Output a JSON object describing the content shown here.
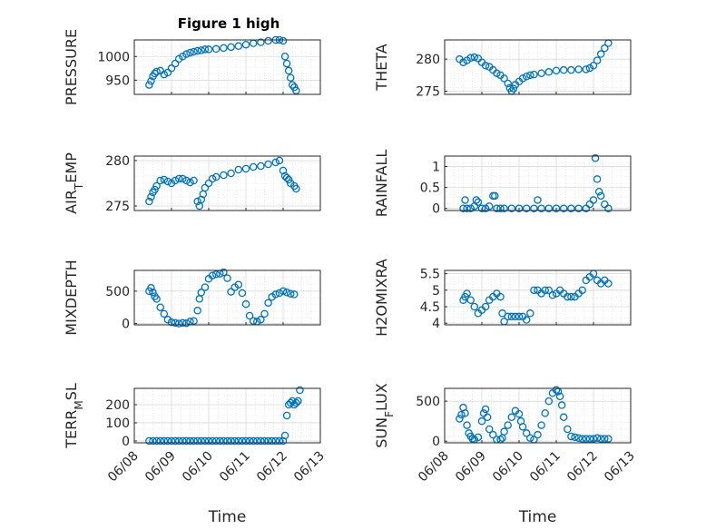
{
  "figure": {
    "title": "Figure 1 high"
  },
  "style": {
    "marker_color": "#0072BD",
    "axis_color": "#262626",
    "grid_color": "#d9d9d9",
    "background": "#ffffff"
  },
  "chart_data": [
    {
      "type": "scatter",
      "ylabel": "PRESSURE",
      "yticks": [
        "950",
        "1000"
      ],
      "ylim": [
        920,
        1035
      ],
      "x": [
        0.4,
        0.45,
        0.5,
        0.55,
        0.6,
        0.7,
        0.8,
        0.9,
        1.0,
        1.1,
        1.2,
        1.3,
        1.4,
        1.5,
        1.6,
        1.7,
        1.8,
        1.9,
        2.0,
        2.2,
        2.4,
        2.6,
        2.8,
        3.0,
        3.2,
        3.4,
        3.6,
        3.8,
        3.9,
        4.0,
        4.05,
        4.1,
        4.15,
        4.2,
        4.25,
        4.3,
        4.35
      ],
      "y": [
        940,
        948,
        958,
        964,
        968,
        970,
        962,
        966,
        975,
        985,
        995,
        1000,
        1005,
        1008,
        1010,
        1012,
        1013,
        1015,
        1015,
        1016,
        1018,
        1020,
        1022,
        1025,
        1028,
        1030,
        1033,
        1035,
        1035,
        1033,
        1000,
        985,
        970,
        955,
        940,
        935,
        928
      ]
    },
    {
      "type": "scatter",
      "ylabel": "THETA",
      "yticks": [
        "275",
        "280"
      ],
      "ylim": [
        274.5,
        283
      ],
      "x": [
        0.4,
        0.5,
        0.6,
        0.7,
        0.8,
        0.9,
        1.0,
        1.1,
        1.2,
        1.3,
        1.4,
        1.5,
        1.6,
        1.7,
        1.75,
        1.8,
        1.85,
        1.9,
        2.0,
        2.1,
        2.2,
        2.3,
        2.4,
        2.6,
        2.8,
        3.0,
        3.2,
        3.4,
        3.6,
        3.8,
        3.9,
        4.0,
        4.1,
        4.2,
        4.3,
        4.4
      ],
      "y": [
        280,
        279.5,
        279.8,
        280.2,
        280.3,
        280.1,
        279.5,
        279,
        278.8,
        278.3,
        277.8,
        277.5,
        277,
        276.2,
        275.5,
        275,
        275.4,
        276,
        276.5,
        277,
        277.3,
        277.5,
        277.6,
        277.8,
        278,
        278.2,
        278.3,
        278.3,
        278.4,
        278.4,
        278.6,
        279,
        279.8,
        280.8,
        281.7,
        282.5
      ]
    },
    {
      "type": "scatter",
      "ylabel": "AIR_TEMP",
      "yticks": [
        "275",
        "280"
      ],
      "ylim": [
        274.5,
        280.5
      ],
      "x": [
        0.4,
        0.45,
        0.5,
        0.55,
        0.6,
        0.7,
        0.8,
        0.9,
        1.0,
        1.1,
        1.2,
        1.3,
        1.4,
        1.5,
        1.6,
        1.7,
        1.75,
        1.8,
        1.85,
        1.9,
        2.0,
        2.1,
        2.2,
        2.4,
        2.6,
        2.8,
        3.0,
        3.2,
        3.4,
        3.6,
        3.8,
        3.9,
        4.0,
        4.05,
        4.1,
        4.15,
        4.2,
        4.3,
        4.35
      ],
      "y": [
        275.5,
        276,
        276.5,
        276.8,
        277.2,
        277.8,
        277.9,
        277.7,
        277.5,
        277.8,
        278,
        278,
        277.8,
        277.6,
        277.8,
        275.5,
        275,
        275.7,
        276.3,
        277,
        277.5,
        278,
        278.2,
        278.4,
        278.6,
        279,
        279.1,
        279.3,
        279.4,
        279.6,
        279.8,
        280,
        278.9,
        278.3,
        278.1,
        277.9,
        277.5,
        277.2,
        276.9
      ]
    },
    {
      "type": "scatter",
      "ylabel": "RAINFALL",
      "yticks": [
        "0",
        "0.5",
        "1"
      ],
      "ylim": [
        -0.05,
        1.25
      ],
      "x": [
        0.5,
        0.55,
        0.6,
        0.7,
        0.8,
        0.85,
        0.9,
        1.0,
        1.1,
        1.2,
        1.3,
        1.35,
        1.4,
        1.5,
        1.6,
        1.8,
        2.0,
        2.2,
        2.4,
        2.5,
        2.6,
        2.8,
        3.0,
        3.2,
        3.4,
        3.6,
        3.8,
        3.9,
        4.0,
        4.05,
        4.1,
        4.15,
        4.2,
        4.3,
        4.4
      ],
      "y": [
        0,
        0.2,
        0,
        0,
        0.05,
        0.2,
        0.15,
        0,
        0,
        0.05,
        0.3,
        0.3,
        0,
        0,
        0,
        0,
        0,
        0,
        0,
        0.2,
        0,
        0,
        0,
        0,
        0,
        0,
        0,
        0.1,
        0.2,
        1.2,
        0.7,
        0.4,
        0.3,
        0.1,
        0
      ]
    },
    {
      "type": "scatter",
      "ylabel": "MIXDEPTH",
      "yticks": [
        "0",
        "500"
      ],
      "ylim": [
        -20,
        820
      ],
      "x": [
        0.4,
        0.45,
        0.5,
        0.55,
        0.6,
        0.7,
        0.8,
        0.9,
        1.0,
        1.1,
        1.2,
        1.3,
        1.4,
        1.5,
        1.6,
        1.7,
        1.75,
        1.8,
        1.9,
        2.0,
        2.1,
        2.2,
        2.3,
        2.4,
        2.5,
        2.6,
        2.7,
        2.8,
        2.9,
        3.0,
        3.1,
        3.2,
        3.3,
        3.4,
        3.5,
        3.6,
        3.7,
        3.8,
        3.9,
        4.0,
        4.1,
        4.2,
        4.3
      ],
      "y": [
        500,
        550,
        480,
        420,
        380,
        250,
        150,
        60,
        20,
        10,
        0,
        10,
        5,
        30,
        40,
        200,
        380,
        480,
        560,
        690,
        740,
        760,
        770,
        790,
        700,
        490,
        560,
        600,
        470,
        300,
        120,
        40,
        30,
        60,
        150,
        320,
        410,
        450,
        470,
        500,
        480,
        460,
        450
      ]
    },
    {
      "type": "scatter",
      "ylabel": "H2OMIXRA",
      "yticks": [
        "4",
        "4.5",
        "5",
        "5.5"
      ],
      "ylim": [
        3.95,
        5.6
      ],
      "x": [
        0.5,
        0.55,
        0.6,
        0.7,
        0.8,
        0.9,
        1.0,
        1.1,
        1.2,
        1.3,
        1.4,
        1.5,
        1.55,
        1.6,
        1.7,
        1.8,
        1.9,
        2.0,
        2.1,
        2.2,
        2.3,
        2.4,
        2.5,
        2.6,
        2.7,
        2.8,
        2.9,
        3.0,
        3.1,
        3.2,
        3.3,
        3.4,
        3.5,
        3.6,
        3.7,
        3.8,
        3.9,
        4.0,
        4.1,
        4.2,
        4.3,
        4.4
      ],
      "y": [
        4.7,
        4.8,
        4.9,
        4.7,
        4.5,
        4.3,
        4.4,
        4.5,
        4.7,
        4.8,
        4.9,
        4.8,
        4.3,
        4.05,
        4.2,
        4.2,
        4.2,
        4.2,
        4.2,
        4.1,
        4.3,
        5.0,
        5.0,
        4.9,
        5.0,
        5.0,
        4.85,
        4.9,
        5.0,
        4.9,
        4.8,
        4.8,
        4.8,
        4.9,
        5.0,
        5.3,
        5.4,
        5.5,
        5.3,
        5.2,
        5.3,
        5.2
      ]
    },
    {
      "type": "scatter",
      "ylabel": "TERR_MSL",
      "yticks": [
        "0",
        "100",
        "200"
      ],
      "ylim": [
        -10,
        290
      ],
      "x": [
        0.4,
        0.5,
        0.6,
        0.7,
        0.8,
        0.9,
        1.0,
        1.1,
        1.2,
        1.3,
        1.4,
        1.5,
        1.6,
        1.7,
        1.8,
        1.9,
        2.0,
        2.1,
        2.2,
        2.3,
        2.4,
        2.5,
        2.6,
        2.7,
        2.8,
        2.9,
        3.0,
        3.1,
        3.2,
        3.3,
        3.4,
        3.5,
        3.6,
        3.7,
        3.8,
        3.9,
        4.0,
        4.05,
        4.1,
        4.15,
        4.2,
        4.25,
        4.3,
        4.35,
        4.4,
        4.45
      ],
      "y": [
        0,
        0,
        0,
        0,
        0,
        0,
        0,
        0,
        0,
        0,
        0,
        0,
        0,
        0,
        0,
        0,
        0,
        0,
        0,
        0,
        0,
        0,
        0,
        0,
        0,
        0,
        0,
        0,
        0,
        0,
        0,
        0,
        0,
        0,
        0,
        0,
        0,
        30,
        140,
        200,
        210,
        220,
        200,
        210,
        220,
        280
      ]
    },
    {
      "type": "scatter",
      "ylabel": "SUN_FLUX",
      "yticks": [
        "0",
        "500"
      ],
      "ylim": [
        -20,
        660
      ],
      "x": [
        0.4,
        0.45,
        0.5,
        0.55,
        0.6,
        0.65,
        0.7,
        0.75,
        0.8,
        0.9,
        1.0,
        1.05,
        1.1,
        1.15,
        1.2,
        1.3,
        1.4,
        1.5,
        1.55,
        1.6,
        1.7,
        1.8,
        1.9,
        2.0,
        2.05,
        2.1,
        2.2,
        2.3,
        2.4,
        2.5,
        2.6,
        2.7,
        2.8,
        2.9,
        3.0,
        3.05,
        3.1,
        3.15,
        3.2,
        3.3,
        3.4,
        3.5,
        3.6,
        3.7,
        3.8,
        3.9,
        4.0,
        4.1,
        4.2,
        4.3,
        4.4
      ],
      "y": [
        280,
        330,
        420,
        350,
        200,
        100,
        60,
        30,
        20,
        50,
        250,
        350,
        400,
        300,
        150,
        80,
        20,
        20,
        40,
        120,
        200,
        300,
        380,
        340,
        250,
        180,
        100,
        40,
        20,
        80,
        200,
        350,
        500,
        600,
        640,
        620,
        560,
        450,
        300,
        150,
        60,
        50,
        40,
        30,
        30,
        30,
        30,
        40,
        30,
        30,
        30
      ]
    }
  ],
  "x_axis": {
    "label": "Time",
    "ticks": [
      "06/08",
      "06/09",
      "06/10",
      "06/11",
      "06/12",
      "06/13"
    ],
    "xlim": [
      0,
      5
    ]
  }
}
